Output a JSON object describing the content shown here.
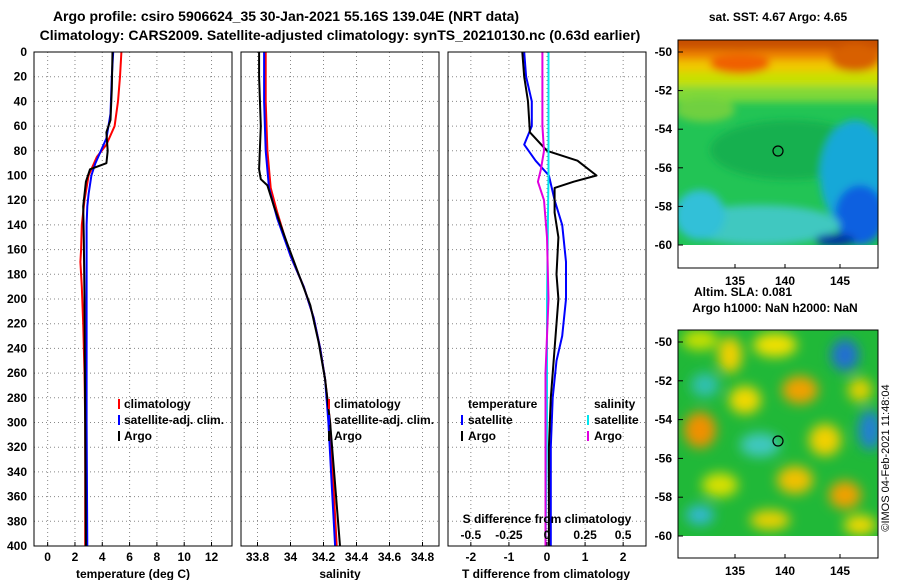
{
  "header": {
    "title_line1": "Argo profile: csiro 5906624_35 30-Jan-2021 55.16S 139.04E (NRT data)",
    "title_line2": "Climatology: CARS2009. Satellite-adjusted climatology: synTS_20210130.nc (0.63d earlier)"
  },
  "depth_axis": {
    "ticks": [
      0,
      20,
      40,
      60,
      80,
      100,
      120,
      140,
      160,
      180,
      200,
      220,
      240,
      260,
      280,
      300,
      320,
      340,
      360,
      380,
      400
    ],
    "range": [
      0,
      400
    ]
  },
  "colors": {
    "climatology": "#ff0000",
    "satellite": "#0000ff",
    "argo": "#000000",
    "sat_salinity": "#00e5ee",
    "argo_salinity": "#e000e0"
  },
  "chart_data": [
    {
      "type": "line",
      "panel": "temperature",
      "xlabel": "temperature (deg C)",
      "xlim": [
        -1,
        13.5
      ],
      "xticks": [
        0,
        2,
        4,
        6,
        8,
        10,
        12
      ],
      "legend": [
        "climatology",
        "satellite-adj. clim.",
        "Argo"
      ],
      "legend_position": "lower-right",
      "series": [
        {
          "name": "climatology",
          "color": "#ff0000",
          "points": [
            [
              5.4,
              0
            ],
            [
              5.3,
              20
            ],
            [
              5.15,
              40
            ],
            [
              4.9,
              60
            ],
            [
              4.3,
              75
            ],
            [
              3.6,
              85
            ],
            [
              3.0,
              100
            ],
            [
              2.7,
              120
            ],
            [
              2.5,
              140
            ],
            [
              2.45,
              160
            ],
            [
              2.4,
              170
            ],
            [
              2.5,
              190
            ],
            [
              2.6,
              220
            ],
            [
              2.7,
              260
            ],
            [
              2.75,
              300
            ],
            [
              2.75,
              400
            ]
          ]
        },
        {
          "name": "satellite-adj. clim.",
          "color": "#0000ff",
          "points": [
            [
              4.8,
              0
            ],
            [
              4.7,
              20
            ],
            [
              4.6,
              50
            ],
            [
              4.3,
              70
            ],
            [
              3.9,
              80
            ],
            [
              3.5,
              90
            ],
            [
              3.2,
              100
            ],
            [
              3.0,
              115
            ],
            [
              2.9,
              125
            ],
            [
              2.85,
              140
            ],
            [
              2.85,
              200
            ],
            [
              2.85,
              300
            ],
            [
              2.9,
              400
            ]
          ]
        },
        {
          "name": "Argo",
          "color": "#000000",
          "points": [
            [
              4.75,
              0
            ],
            [
              4.7,
              30
            ],
            [
              4.6,
              55
            ],
            [
              4.3,
              65
            ],
            [
              4.4,
              80
            ],
            [
              4.3,
              90
            ],
            [
              3.1,
              95
            ],
            [
              2.8,
              105
            ],
            [
              2.6,
              125
            ],
            [
              2.65,
              150
            ],
            [
              2.7,
              200
            ],
            [
              2.75,
              300
            ],
            [
              2.8,
              400
            ]
          ]
        }
      ]
    },
    {
      "type": "line",
      "panel": "salinity",
      "xlabel": "salinity",
      "xlim": [
        33.7,
        34.9
      ],
      "xticks": [
        33.8,
        34,
        34.2,
        34.4,
        34.6,
        34.8
      ],
      "xtick_labels": [
        "33.8",
        "34",
        "34.2",
        "34.4",
        "34.6",
        "34.8"
      ],
      "legend": [
        "climatology",
        "satellite-adj. clim.",
        "Argo"
      ],
      "legend_position": "lower-right",
      "series": [
        {
          "name": "climatology",
          "color": "#ff0000",
          "points": [
            [
              33.85,
              0
            ],
            [
              33.85,
              40
            ],
            [
              33.86,
              80
            ],
            [
              33.88,
              110
            ],
            [
              33.92,
              130
            ],
            [
              34.0,
              165
            ],
            [
              34.08,
              190
            ],
            [
              34.14,
              215
            ],
            [
              34.18,
              240
            ],
            [
              34.21,
              265
            ],
            [
              34.24,
              300
            ],
            [
              34.26,
              350
            ],
            [
              34.28,
              400
            ]
          ]
        },
        {
          "name": "satellite-adj. clim.",
          "color": "#0000ff",
          "points": [
            [
              33.84,
              0
            ],
            [
              33.84,
              40
            ],
            [
              33.85,
              80
            ],
            [
              33.87,
              110
            ],
            [
              33.92,
              135
            ],
            [
              34.0,
              165
            ],
            [
              34.08,
              190
            ],
            [
              34.14,
              215
            ],
            [
              34.18,
              240
            ],
            [
              34.21,
              265
            ],
            [
              34.23,
              300
            ],
            [
              34.25,
              350
            ],
            [
              34.27,
              400
            ]
          ]
        },
        {
          "name": "Argo",
          "color": "#000000",
          "points": [
            [
              33.81,
              0
            ],
            [
              33.81,
              20
            ],
            [
              33.82,
              60
            ],
            [
              33.81,
              95
            ],
            [
              33.82,
              103
            ],
            [
              33.86,
              108
            ],
            [
              33.9,
              125
            ],
            [
              33.98,
              155
            ],
            [
              34.05,
              180
            ],
            [
              34.12,
              205
            ],
            [
              34.17,
              235
            ],
            [
              34.21,
              265
            ],
            [
              34.24,
              300
            ],
            [
              34.27,
              350
            ],
            [
              34.3,
              400
            ]
          ]
        }
      ]
    },
    {
      "type": "line",
      "panel": "difference",
      "xlabel": "T difference from climatology",
      "xlim": [
        -2.6,
        2.6
      ],
      "xticks": [
        -2,
        -1,
        0,
        1,
        2
      ],
      "top_xlabel": "S difference from climatology",
      "top_ticks": [
        -0.5,
        -0.25,
        0,
        0.25,
        0.5
      ],
      "top_tick_labels": [
        "-0.5",
        "-0.25",
        "0",
        "0.25",
        "0.5"
      ],
      "top_xlim": [
        -0.65,
        0.65
      ],
      "legend_left": {
        "title": "temperature",
        "entries": [
          "satellite",
          "Argo"
        ]
      },
      "legend_right": {
        "title": "salinity",
        "entries": [
          "satellite",
          "Argo"
        ]
      },
      "series": [
        {
          "name": "temperature satellite",
          "color": "#0000ff",
          "scale": "T",
          "points": [
            [
              -0.6,
              0
            ],
            [
              -0.55,
              20
            ],
            [
              -0.4,
              40
            ],
            [
              -0.4,
              60
            ],
            [
              -0.6,
              75
            ],
            [
              -0.3,
              88
            ],
            [
              0.05,
              100
            ],
            [
              0.2,
              120
            ],
            [
              0.4,
              140
            ],
            [
              0.5,
              170
            ],
            [
              0.5,
              200
            ],
            [
              0.4,
              230
            ],
            [
              0.25,
              250
            ],
            [
              0.15,
              280
            ],
            [
              0.1,
              320
            ],
            [
              0.1,
              360
            ],
            [
              0.1,
              400
            ]
          ]
        },
        {
          "name": "temperature Argo",
          "color": "#000000",
          "scale": "T",
          "points": [
            [
              -0.65,
              0
            ],
            [
              -0.6,
              20
            ],
            [
              -0.5,
              40
            ],
            [
              -0.45,
              65
            ],
            [
              0.0,
              80
            ],
            [
              0.8,
              88
            ],
            [
              1.3,
              100
            ],
            [
              0.7,
              105
            ],
            [
              0.2,
              110
            ],
            [
              0.2,
              130
            ],
            [
              0.3,
              150
            ],
            [
              0.25,
              180
            ],
            [
              0.3,
              200
            ],
            [
              0.2,
              240
            ],
            [
              0.1,
              280
            ],
            [
              0.05,
              320
            ],
            [
              0.05,
              400
            ]
          ]
        },
        {
          "name": "salinity satellite",
          "color": "#00e5ee",
          "scale": "S",
          "points": [
            [
              0.01,
              0
            ],
            [
              0.01,
              100
            ],
            [
              0.0,
              200
            ],
            [
              0.0,
              300
            ],
            [
              -0.01,
              400
            ]
          ]
        },
        {
          "name": "salinity Argo",
          "color": "#e000e0",
          "scale": "S",
          "points": [
            [
              -0.03,
              0
            ],
            [
              -0.03,
              60
            ],
            [
              -0.02,
              80
            ],
            [
              -0.04,
              95
            ],
            [
              -0.06,
              105
            ],
            [
              -0.02,
              120
            ],
            [
              0.0,
              150
            ],
            [
              0.01,
              200
            ],
            [
              -0.01,
              260
            ],
            [
              -0.01,
              300
            ],
            [
              -0.01,
              400
            ]
          ]
        }
      ]
    }
  ],
  "map_top": {
    "title": "sat. SST: 4.67 Argo: 4.65",
    "yticks": [
      "-50",
      "-52",
      "-54",
      "-56",
      "-58",
      "-60"
    ],
    "xticks": [
      "135",
      "140",
      "145"
    ]
  },
  "map_bottom": {
    "title_line1": "Altim. SLA: 0.081",
    "title_line2": "Argo h1000: NaN h2000: NaN",
    "yticks": [
      "-50",
      "-52",
      "-54",
      "-56",
      "-58",
      "-60"
    ],
    "xticks": [
      "135",
      "140",
      "145"
    ]
  },
  "credit": "©IMOS 04-Feb-2021 11:48:04"
}
